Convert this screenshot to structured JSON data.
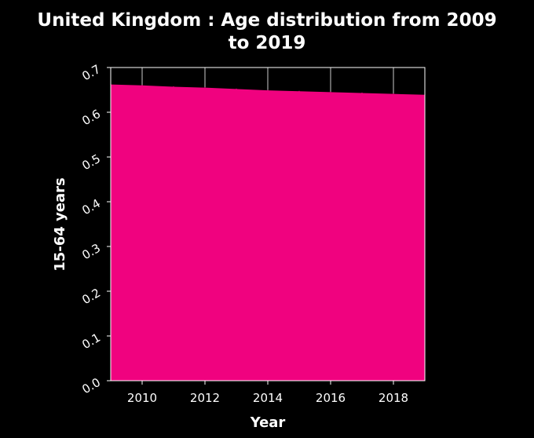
{
  "chart_data": {
    "type": "area",
    "title_lines": [
      "United Kingdom : Age distribution from 2009",
      "to 2019"
    ],
    "xlabel": "Year",
    "ylabel": "15-64 years",
    "x": [
      2009,
      2010,
      2011,
      2012,
      2013,
      2014,
      2015,
      2016,
      2017,
      2018,
      2019
    ],
    "series": [
      {
        "values": [
          0.662,
          0.66,
          0.657,
          0.655,
          0.652,
          0.649,
          0.647,
          0.645,
          0.643,
          0.641,
          0.639
        ]
      }
    ],
    "xlim": [
      2009,
      2019
    ],
    "ylim": [
      0.0,
      0.7
    ],
    "xticks": [
      2010,
      2012,
      2014,
      2016,
      2018
    ],
    "yticks": [
      0.0,
      0.1,
      0.2,
      0.3,
      0.4,
      0.5,
      0.6,
      0.7
    ],
    "ytick_labels": [
      "0.0",
      "0.1",
      "0.2",
      "0.3",
      "0.4",
      "0.5",
      "0.6",
      "0.7"
    ],
    "fill_color": "#F0027F",
    "background_color": "#000000",
    "text_color": "#ffffff",
    "grid": true,
    "legend": "none"
  }
}
